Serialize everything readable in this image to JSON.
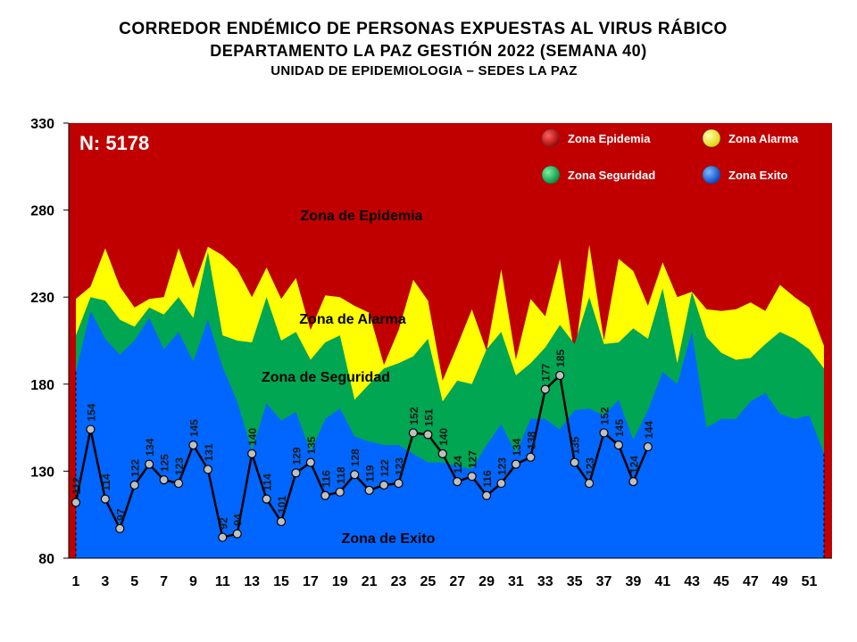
{
  "titles": {
    "line1": "CORREDOR ENDÉMICO DE PERSONAS EXPUESTAS AL VIRUS RÁBICO",
    "line2": "DEPARTAMENTO LA PAZ GESTIÓN 2022 (SEMANA 40)",
    "line3": "UNIDAD DE EPIDEMIOLOGIA – SEDES LA PAZ"
  },
  "chart_data": {
    "type": "area",
    "n_label": "N: 5178",
    "ylim": [
      80,
      330
    ],
    "yticks": [
      80,
      130,
      180,
      230,
      280,
      330
    ],
    "xticks": [
      1,
      3,
      5,
      7,
      9,
      11,
      13,
      15,
      17,
      19,
      21,
      23,
      25,
      27,
      29,
      31,
      33,
      35,
      37,
      39,
      41,
      43,
      45,
      47,
      49,
      51
    ],
    "zone_labels": {
      "epidemia": "Zona de Epidemia",
      "alarma": "Zona de Alarma",
      "seguridad": "Zona de Seguridad",
      "exito": "Zona de Exito"
    },
    "legend": [
      {
        "label": "Zona Epidemia",
        "color": "#cc0000"
      },
      {
        "label": "Zona Alarma",
        "color": "#ffff00"
      },
      {
        "label": "Zona Seguridad",
        "color": "#00b050"
      },
      {
        "label": "Zona Exito",
        "color": "#0066ff"
      }
    ],
    "colors": {
      "epidemia": "#c00000",
      "alarma": "#ffff00",
      "seguridad": "#00a651",
      "exito": "#0066ff",
      "line": "#000000",
      "marker": "#bfbfbf"
    },
    "weeks": [
      1,
      2,
      3,
      4,
      5,
      6,
      7,
      8,
      9,
      10,
      11,
      12,
      13,
      14,
      15,
      16,
      17,
      18,
      19,
      20,
      21,
      22,
      23,
      24,
      25,
      26,
      27,
      28,
      29,
      30,
      31,
      32,
      33,
      34,
      35,
      36,
      37,
      38,
      39,
      40,
      41,
      42,
      43,
      44,
      45,
      46,
      47,
      48,
      49,
      50,
      51,
      52
    ],
    "exito": [
      187,
      222,
      206,
      197,
      205,
      218,
      200,
      210,
      193,
      217,
      190,
      170,
      142,
      169,
      159,
      164,
      141,
      160,
      166,
      150,
      147,
      145,
      145,
      140,
      135,
      135,
      133,
      131,
      145,
      157,
      140,
      160,
      160,
      154,
      165,
      166,
      162,
      171,
      148,
      165,
      187,
      180,
      210,
      155,
      160,
      160,
      170,
      175,
      163,
      160,
      162,
      140
    ],
    "seguridad": [
      208,
      230,
      228,
      217,
      213,
      224,
      220,
      230,
      218,
      256,
      208,
      205,
      204,
      230,
      205,
      210,
      194,
      204,
      208,
      171,
      180,
      189,
      192,
      196,
      206,
      170,
      182,
      180,
      200,
      210,
      185,
      192,
      201,
      214,
      203,
      230,
      203,
      204,
      212,
      206,
      235,
      192,
      233,
      207,
      198,
      194,
      195,
      203,
      210,
      206,
      200,
      189
    ],
    "alarma": [
      229,
      236,
      258,
      236,
      224,
      229,
      230,
      258,
      235,
      259,
      254,
      246,
      230,
      247,
      229,
      241,
      211,
      231,
      230,
      225,
      221,
      191,
      211,
      240,
      228,
      182,
      202,
      223,
      199,
      246,
      194,
      229,
      219,
      252,
      196,
      260,
      205,
      252,
      245,
      225,
      250,
      230,
      233,
      223,
      222,
      223,
      227,
      222,
      237,
      230,
      224,
      202
    ],
    "observed": [
      112,
      154,
      114,
      97,
      122,
      134,
      125,
      123,
      145,
      131,
      92,
      94,
      140,
      114,
      101,
      129,
      135,
      116,
      118,
      128,
      119,
      122,
      123,
      152,
      151,
      140,
      124,
      127,
      116,
      123,
      134,
      138,
      177,
      185,
      135,
      123,
      152,
      145,
      124,
      144
    ]
  }
}
